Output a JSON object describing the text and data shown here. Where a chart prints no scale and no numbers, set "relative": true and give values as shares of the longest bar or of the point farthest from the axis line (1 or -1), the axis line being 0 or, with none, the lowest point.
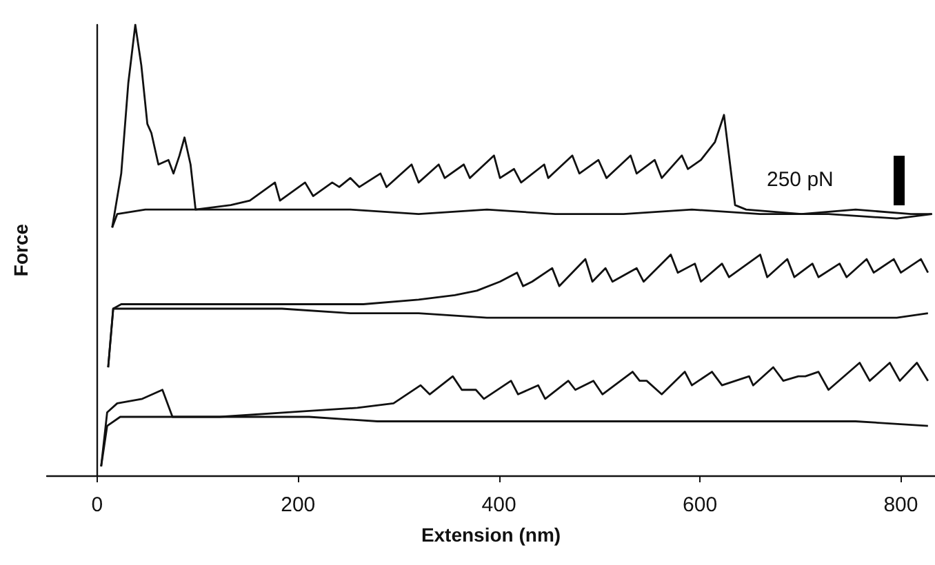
{
  "chart_data": {
    "type": "line",
    "relative": true,
    "xlabel": "Extension (nm)",
    "ylabel": "Force",
    "xlim": [
      -50,
      834
    ],
    "xticks": [
      0,
      200,
      400,
      600,
      800
    ],
    "marker": "none",
    "line_style": "solid",
    "annotations": [
      "250 pN"
    ],
    "series": [
      {
        "color": "#111111",
        "x": [
          15,
          24,
          31,
          38,
          44,
          50,
          54,
          61,
          71,
          76,
          82,
          87,
          93,
          98,
          133,
          152,
          177,
          182,
          207,
          215,
          234,
          241,
          252,
          261,
          282,
          288,
          313,
          320,
          340,
          346,
          365,
          371,
          395,
          401,
          415,
          422,
          445,
          449,
          473,
          480,
          499,
          507,
          531,
          537,
          555,
          562,
          582,
          588,
          601,
          615,
          624,
          635,
          646,
          701,
          755,
          810,
          831
        ],
        "values": [
          0.55,
          0.67,
          0.87,
          1.0,
          0.91,
          0.78,
          0.76,
          0.69,
          0.7,
          0.67,
          0.71,
          0.75,
          0.69,
          0.59,
          0.6,
          0.61,
          0.65,
          0.61,
          0.65,
          0.62,
          0.65,
          0.64,
          0.66,
          0.64,
          0.67,
          0.64,
          0.69,
          0.65,
          0.69,
          0.66,
          0.69,
          0.66,
          0.71,
          0.66,
          0.68,
          0.65,
          0.69,
          0.66,
          0.71,
          0.67,
          0.7,
          0.66,
          0.71,
          0.67,
          0.7,
          0.66,
          0.71,
          0.68,
          0.7,
          0.74,
          0.8,
          0.6,
          0.59,
          0.58,
          0.59,
          0.58,
          0.58
        ]
      },
      {
        "color": "#111111",
        "x": [
          15,
          20,
          48,
          116,
          184,
          252,
          320,
          388,
          456,
          524,
          592,
          660,
          728,
          796,
          831
        ],
        "values": [
          0.55,
          0.58,
          0.59,
          0.59,
          0.59,
          0.59,
          0.58,
          0.59,
          0.58,
          0.58,
          0.59,
          0.58,
          0.58,
          0.57,
          0.58
        ]
      },
      {
        "color": "#111111",
        "x": [
          11,
          16,
          24,
          75,
          143,
          211,
          265,
          320,
          356,
          378,
          401,
          418,
          424,
          433,
          453,
          460,
          486,
          493,
          506,
          513,
          537,
          544,
          571,
          578,
          595,
          601,
          622,
          629,
          660,
          667,
          687,
          694,
          712,
          718,
          739,
          746,
          766,
          773,
          793,
          800,
          820,
          827
        ],
        "values": [
          0.24,
          0.37,
          0.38,
          0.38,
          0.38,
          0.38,
          0.38,
          0.39,
          0.4,
          0.41,
          0.43,
          0.45,
          0.42,
          0.43,
          0.46,
          0.42,
          0.48,
          0.43,
          0.46,
          0.43,
          0.46,
          0.43,
          0.49,
          0.45,
          0.47,
          0.43,
          0.47,
          0.44,
          0.49,
          0.44,
          0.48,
          0.44,
          0.47,
          0.44,
          0.47,
          0.44,
          0.48,
          0.45,
          0.48,
          0.45,
          0.48,
          0.45
        ]
      },
      {
        "color": "#111111",
        "x": [
          11,
          16,
          48,
          116,
          184,
          252,
          320,
          388,
          456,
          524,
          592,
          660,
          728,
          796,
          827
        ],
        "values": [
          0.24,
          0.37,
          0.37,
          0.37,
          0.37,
          0.36,
          0.36,
          0.35,
          0.35,
          0.35,
          0.35,
          0.35,
          0.35,
          0.35,
          0.36
        ]
      },
      {
        "color": "#111111",
        "x": [
          4,
          10,
          20,
          45,
          65,
          75,
          122,
          190,
          259,
          295,
          322,
          331,
          354,
          363,
          377,
          385,
          412,
          419,
          439,
          446,
          469,
          476,
          494,
          503,
          533,
          540,
          547,
          562,
          585,
          592,
          612,
          622,
          649,
          653,
          673,
          683,
          698,
          705,
          718,
          728,
          759,
          769,
          789,
          799,
          816,
          827
        ],
        "values": [
          0.02,
          0.14,
          0.16,
          0.17,
          0.19,
          0.13,
          0.13,
          0.14,
          0.15,
          0.16,
          0.2,
          0.18,
          0.22,
          0.19,
          0.19,
          0.17,
          0.21,
          0.18,
          0.2,
          0.17,
          0.21,
          0.19,
          0.21,
          0.18,
          0.23,
          0.21,
          0.21,
          0.18,
          0.23,
          0.2,
          0.23,
          0.2,
          0.22,
          0.2,
          0.24,
          0.21,
          0.22,
          0.22,
          0.23,
          0.19,
          0.25,
          0.21,
          0.25,
          0.21,
          0.25,
          0.21
        ]
      },
      {
        "color": "#111111",
        "x": [
          4,
          10,
          23,
          75,
          143,
          211,
          279,
          347,
          415,
          483,
          551,
          619,
          687,
          755,
          827
        ],
        "values": [
          0.02,
          0.11,
          0.13,
          0.13,
          0.13,
          0.13,
          0.12,
          0.12,
          0.12,
          0.12,
          0.12,
          0.12,
          0.12,
          0.12,
          0.11
        ]
      }
    ]
  }
}
